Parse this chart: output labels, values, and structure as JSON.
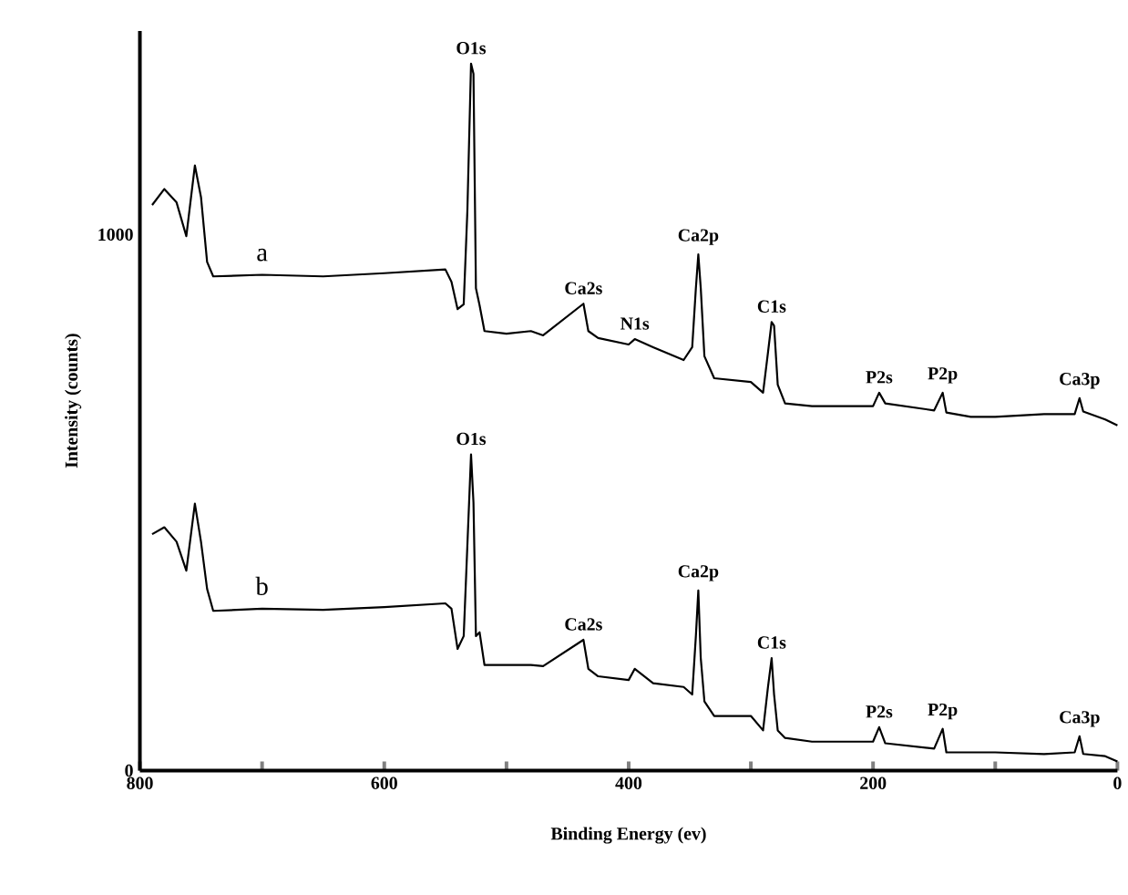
{
  "chart_data": {
    "type": "line",
    "xlabel": "Binding Energy  (ev)",
    "ylabel": "Intensity (counts)",
    "xlim": [
      800,
      0
    ],
    "ylim": [
      0,
      1380
    ],
    "xticks": [
      800,
      {
        "value": 700,
        "label": null
      },
      600,
      {
        "value": 500,
        "label": null
      },
      400,
      {
        "value": 300,
        "label": null
      },
      200,
      {
        "value": 100,
        "label": null
      },
      0
    ],
    "yticks": [
      0,
      1000
    ],
    "grid": false,
    "legend": false,
    "marker": "none",
    "line_style": "solid",
    "x": [
      790,
      780,
      770,
      762,
      755,
      750,
      745,
      740,
      700,
      650,
      600,
      550,
      545,
      540,
      535,
      532,
      529,
      527,
      525,
      522,
      518,
      500,
      480,
      470,
      437,
      433,
      425,
      400,
      395,
      380,
      355,
      348,
      345,
      343,
      341,
      338,
      330,
      300,
      290,
      286,
      283,
      281,
      278,
      272,
      250,
      200,
      195,
      190,
      150,
      143,
      140,
      120,
      100,
      60,
      35,
      31,
      28,
      10,
      0
    ],
    "series": [
      {
        "name": "a",
        "color": "#000000",
        "values": [
          1055,
          1085,
          1060,
          997,
          1129,
          1070,
          949,
          922,
          925,
          922,
          928,
          935,
          912,
          861,
          870,
          1044,
          1319,
          1300,
          900,
          868,
          820,
          815,
          820,
          812,
          871,
          820,
          807,
          795,
          805,
          790,
          766,
          790,
          900,
          963,
          900,
          773,
          732,
          725,
          705,
          780,
          837,
          830,
          720,
          685,
          680,
          680,
          705,
          685,
          672,
          705,
          668,
          660,
          660,
          665,
          665,
          695,
          670,
          655,
          644
        ]
      },
      {
        "name": "b",
        "color": "#000000",
        "values": [
          441,
          454,
          427,
          373,
          498,
          427,
          339,
          298,
          302,
          300,
          305,
          312,
          302,
          227,
          251,
          420,
          590,
          500,
          251,
          258,
          197,
          197,
          197,
          195,
          244,
          190,
          176,
          169,
          190,
          163,
          156,
          142,
          251,
          336,
          210,
          129,
          102,
          102,
          75,
          156,
          210,
          142,
          75,
          61,
          54,
          54,
          81,
          51,
          41,
          78,
          34,
          34,
          34,
          31,
          34,
          64,
          31,
          27,
          17
        ]
      }
    ],
    "annotations": [
      {
        "text": "O1s",
        "x": 529,
        "y": 1319
      },
      {
        "text": "Ca2s",
        "x": 437,
        "y": 871
      },
      {
        "text": "N1s",
        "x": 395,
        "y": 805
      },
      {
        "text": "Ca2p",
        "x": 343,
        "y": 963
      },
      {
        "text": "C1s",
        "x": 283,
        "y": 837
      },
      {
        "text": "P2s",
        "x": 195,
        "y": 705
      },
      {
        "text": "P2p",
        "x": 143,
        "y": 705
      },
      {
        "text": "Ca3p",
        "x": 31,
        "y": 695
      },
      {
        "text": "O1s",
        "x": 529,
        "y": 590
      },
      {
        "text": "Ca2s",
        "x": 437,
        "y": 244
      },
      {
        "text": "Ca2p",
        "x": 343,
        "y": 336
      },
      {
        "text": "C1s",
        "x": 283,
        "y": 210
      },
      {
        "text": "P2s",
        "x": 195,
        "y": 81
      },
      {
        "text": "P2p",
        "x": 143,
        "y": 78
      },
      {
        "text": "Ca3p",
        "x": 31,
        "y": 64
      }
    ]
  }
}
